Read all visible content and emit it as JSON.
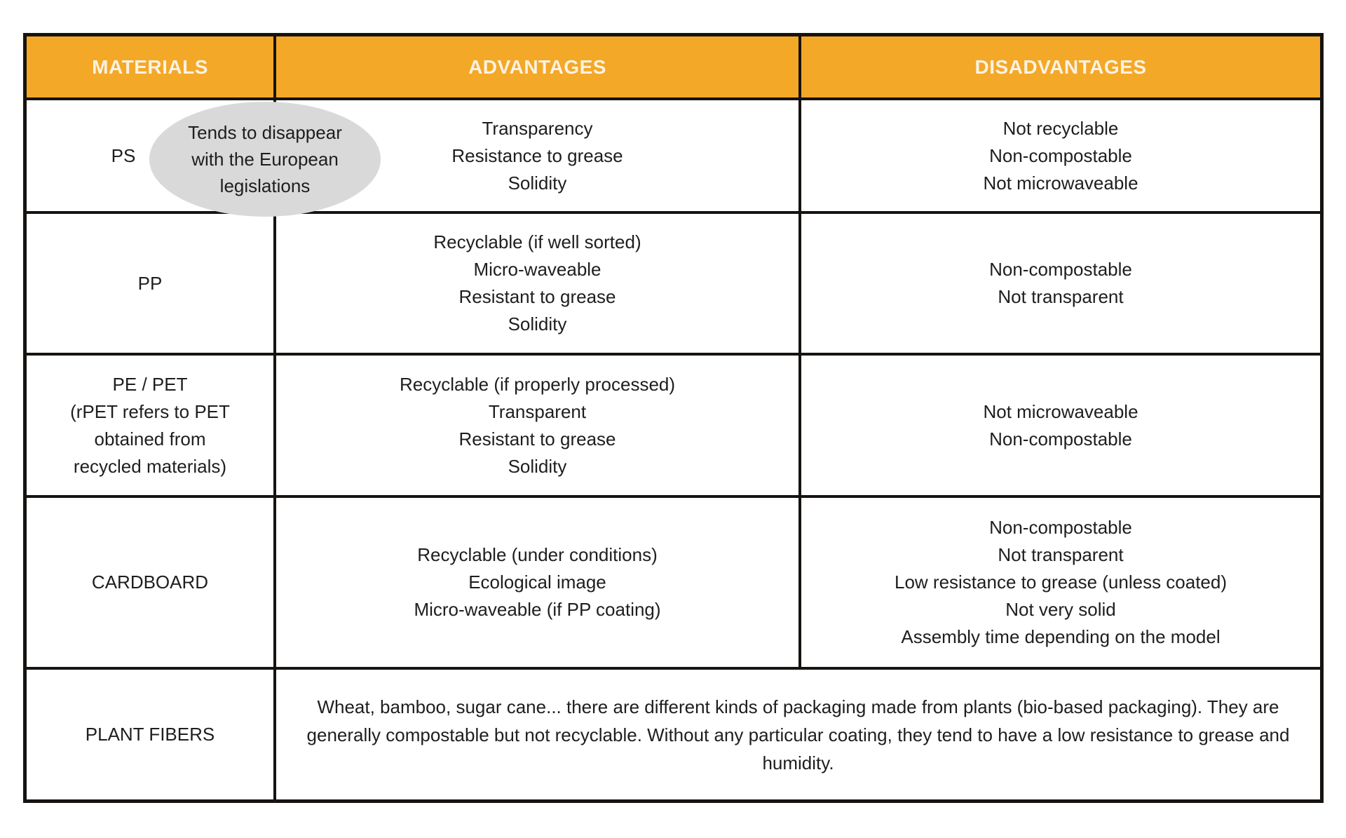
{
  "table": {
    "headers": {
      "materials": "MATERIALS",
      "advantages": "ADVANTAGES",
      "disadvantages": "DISADVANTAGES"
    },
    "colors": {
      "header_bg": "#F4A827",
      "header_text": "#FBF2E3",
      "border": "#161310",
      "note_bg": "#D9D9D9",
      "body_text": "#1E1E1E",
      "cell_bg": "#FFFFFF"
    },
    "rows": [
      {
        "material": "PS",
        "note": "Tends to disappear with the European legislations",
        "advantages": [
          "Transparency",
          "Resistance to grease",
          "Solidity"
        ],
        "disadvantages": [
          "Not recyclable",
          "Non-compostable",
          "Not microwaveable"
        ]
      },
      {
        "material": "PP",
        "advantages": [
          "Recyclable (if well sorted)",
          "Micro-waveable",
          "Resistant to grease",
          "Solidity"
        ],
        "disadvantages": [
          "Non-compostable",
          "Not transparent"
        ]
      },
      {
        "material": "PE / PET",
        "material_note": "(rPET refers to PET obtained from recycled materials)",
        "advantages": [
          "Recyclable (if properly processed)",
          "Transparent",
          "Resistant to grease",
          "Solidity"
        ],
        "disadvantages": [
          "Not microwaveable",
          "Non-compostable"
        ]
      },
      {
        "material": "CARDBOARD",
        "advantages": [
          "Recyclable (under conditions)",
          "Ecological image",
          "Micro-waveable (if PP coating)"
        ],
        "disadvantages": [
          "Non-compostable",
          "Not transparent",
          "Low resistance to grease (unless coated)",
          "Not very solid",
          "Assembly time depending on the model"
        ]
      },
      {
        "material": "PLANT FIBERS",
        "description": "Wheat, bamboo, sugar cane... there are different kinds of packaging made from plants (bio-based packaging). They are generally compostable but not recyclable. Without any particular coating, they tend to have a low resistance to grease and humidity."
      }
    ]
  }
}
